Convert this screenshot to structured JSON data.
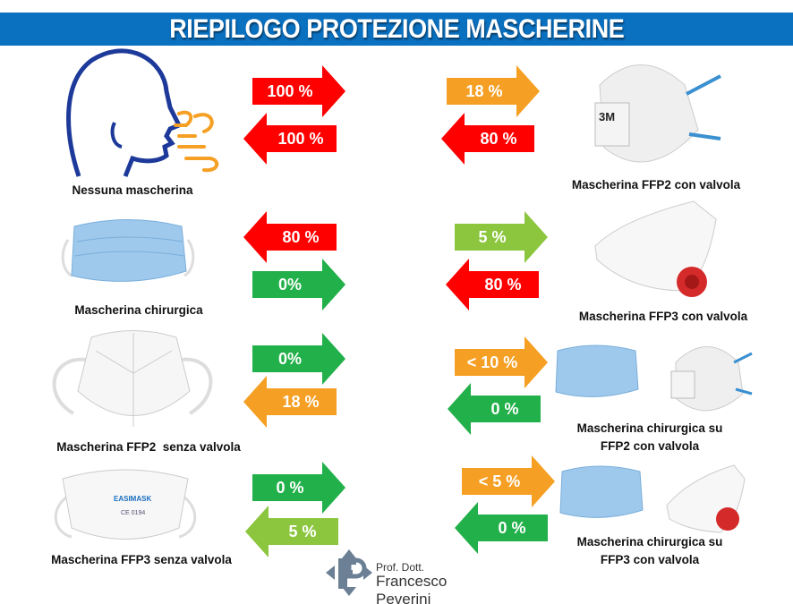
{
  "title": "RIEPILOGO PROTEZIONE MASCHERINE",
  "colors": {
    "header": "#0a70c0",
    "red": "#ff0000",
    "orange": "#f5a024",
    "green": "#22b04a",
    "light_green": "#8cc63f"
  },
  "items": [
    {
      "label": "Nessuna mascherina",
      "out": "100 %",
      "in": "100 %",
      "out_color": "red",
      "in_color": "red"
    },
    {
      "label": "Mascherina chirurgica",
      "in": "80 %",
      "out": "0%",
      "in_color": "red",
      "out_color": "green"
    },
    {
      "label": "Mascherina FFP2  senza valvola",
      "out": "0%",
      "in": "18 %",
      "out_color": "green",
      "in_color": "orange"
    },
    {
      "label": "Mascherina FFP3 senza valvola",
      "out": "0 %",
      "in": "5 %",
      "out_color": "green",
      "in_color": "light_green"
    },
    {
      "label": "Mascherina FFP2 con valvola",
      "out": "18 %",
      "in": "80 %",
      "out_color": "orange",
      "in_color": "red"
    },
    {
      "label": "Mascherina FFP3 con valvola",
      "out": "5 %",
      "in": "80 %",
      "out_color": "light_green",
      "in_color": "red"
    },
    {
      "label_line1": "Mascherina chirurgica su",
      "label_line2": "FFP2 con valvola",
      "out": "< 10 %",
      "in": "0 %",
      "out_color": "orange",
      "in_color": "green"
    },
    {
      "label_line1": "Mascherina chirurgica su",
      "label_line2": "FFP3 con valvola",
      "out": "< 5 %",
      "in": "0 %",
      "out_color": "orange",
      "in_color": "green"
    }
  ],
  "mask_prints": {
    "brand_3m": "3M",
    "easimask": "EASIMASK",
    "ce": "CE 0194"
  },
  "author": {
    "prefix": "Prof. Dott.",
    "name": "Francesco Peverini",
    "logo_letters": "FP"
  }
}
